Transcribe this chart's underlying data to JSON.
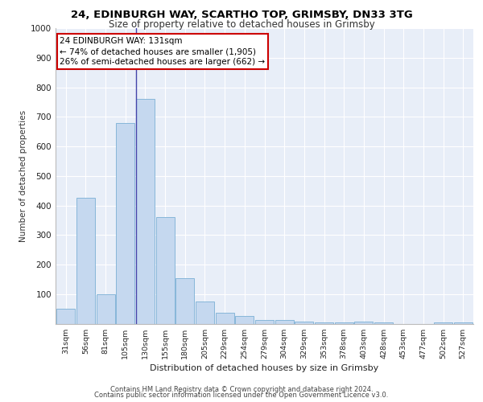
{
  "title1": "24, EDINBURGH WAY, SCARTHO TOP, GRIMSBY, DN33 3TG",
  "title2": "Size of property relative to detached houses in Grimsby",
  "xlabel": "Distribution of detached houses by size in Grimsby",
  "ylabel": "Number of detached properties",
  "categories": [
    "31sqm",
    "56sqm",
    "81sqm",
    "105sqm",
    "130sqm",
    "155sqm",
    "180sqm",
    "205sqm",
    "229sqm",
    "254sqm",
    "279sqm",
    "304sqm",
    "329sqm",
    "353sqm",
    "378sqm",
    "403sqm",
    "428sqm",
    "453sqm",
    "477sqm",
    "502sqm",
    "527sqm"
  ],
  "values": [
    50,
    425,
    100,
    680,
    760,
    360,
    155,
    75,
    38,
    25,
    12,
    12,
    8,
    5,
    5,
    8,
    5,
    0,
    0,
    5,
    5
  ],
  "bar_color": "#c5d8ef",
  "bar_edge_color": "#7aafd4",
  "property_line_index": 4,
  "property_label": "24 EDINBURGH WAY: 131sqm",
  "annotation_line1": "← 74% of detached houses are smaller (1,905)",
  "annotation_line2": "26% of semi-detached houses are larger (662) →",
  "annotation_box_facecolor": "#ffffff",
  "annotation_box_edgecolor": "#cc0000",
  "property_line_color": "#4444aa",
  "ylim": [
    0,
    1000
  ],
  "yticks": [
    0,
    100,
    200,
    300,
    400,
    500,
    600,
    700,
    800,
    900,
    1000
  ],
  "background_color": "#e8eef8",
  "grid_color": "#ffffff",
  "footer1": "Contains HM Land Registry data © Crown copyright and database right 2024.",
  "footer2": "Contains public sector information licensed under the Open Government Licence v3.0."
}
